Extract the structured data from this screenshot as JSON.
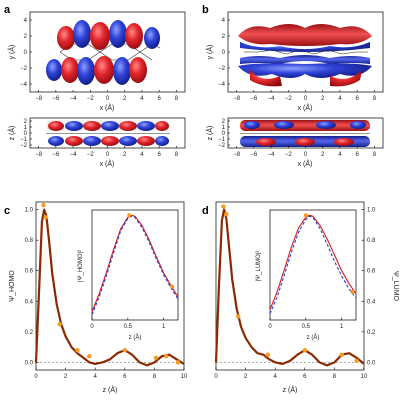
{
  "panels": {
    "a": {
      "label": "a",
      "top": {
        "xlabel": "x (Å)",
        "ylabel": "y (Å)",
        "xticks": [
          "−8",
          "−6",
          "−4",
          "−2",
          "0",
          "2",
          "4",
          "6",
          "8"
        ],
        "yticks": [
          "4",
          "2",
          "0",
          "−2",
          "−4"
        ]
      },
      "bottom": {
        "xlabel": "x (Å)",
        "ylabel": "z (Å)",
        "xticks": [
          "−8",
          "−6",
          "−4",
          "−2",
          "0",
          "2",
          "4",
          "6",
          "8"
        ],
        "yticks": [
          "2",
          "1",
          "0",
          "−1",
          "−2"
        ]
      }
    },
    "b": {
      "label": "b",
      "top": {
        "xlabel": "x (Å)",
        "ylabel": "y (Å)",
        "xticks": [
          "−8",
          "−6",
          "−4",
          "−2",
          "0",
          "2",
          "4",
          "6",
          "8"
        ],
        "yticks": [
          "4",
          "2",
          "0",
          "−2",
          "−4"
        ]
      },
      "bottom": {
        "xlabel": "x (Å)",
        "ylabel": "z (Å)",
        "xticks": [
          "−8",
          "−6",
          "−4",
          "−2",
          "0",
          "2",
          "4",
          "6",
          "8"
        ],
        "yticks": [
          "2",
          "1",
          "0",
          "−1",
          "−2"
        ]
      }
    },
    "c": {
      "label": "c",
      "ylabel": "Ψ_HOMO",
      "xlabel": "z (Å)",
      "inset_ylabel": "|Ψ_HOMO|²",
      "inset_xlabel": "z (Å)"
    },
    "d": {
      "label": "d",
      "ylabel": "Ψ_LUMO",
      "xlabel": "z (Å)",
      "inset_ylabel": "|Ψ_LUMO|²",
      "inset_xlabel": "z (Å)"
    }
  },
  "colors": {
    "red": "#d7191c",
    "blue": "#2b3fd1",
    "orange": "#f59a23",
    "dark": "#8a2a00"
  },
  "chart_data": [
    {
      "type": "line",
      "panel": "c",
      "xlim": [
        0,
        10
      ],
      "ylim": [
        -0.05,
        1.05
      ],
      "xticks": [
        0,
        2,
        4,
        6,
        8,
        10
      ],
      "yticks": [
        0,
        0.2,
        0.4,
        0.6,
        0.8,
        1.0
      ],
      "series": [
        {
          "x": [
            0,
            0.2,
            0.4,
            0.55,
            0.7,
            0.9,
            1.1,
            1.4,
            1.7,
            2.0,
            2.4,
            2.8,
            3.2,
            3.6,
            4.0,
            4.5,
            5.0,
            5.5,
            6.0,
            6.5,
            7.0,
            7.5,
            8.0,
            8.5,
            9.0,
            9.5,
            10.0
          ],
          "y": [
            0.0,
            0.45,
            0.92,
            1.0,
            0.96,
            0.78,
            0.58,
            0.38,
            0.25,
            0.17,
            0.1,
            0.06,
            0.03,
            0.0,
            -0.01,
            0.0,
            0.02,
            0.06,
            0.08,
            0.05,
            0.0,
            -0.02,
            0.0,
            0.04,
            0.05,
            0.02,
            -0.01
          ]
        }
      ],
      "points": {
        "x": [
          0.5,
          0.65,
          1.6,
          2.8,
          3.6,
          6.0,
          8.1,
          8.8,
          9.6
        ],
        "y": [
          1.03,
          0.95,
          0.25,
          0.08,
          0.04,
          0.08,
          0.03,
          0.04,
          0.0
        ]
      },
      "inset": {
        "xlim": [
          0,
          1.2
        ],
        "ylim": [
          0,
          1.05
        ],
        "xticks": [
          0,
          0.5,
          1
        ],
        "series": [
          {
            "x": [
              0,
              0.1,
              0.2,
              0.3,
              0.4,
              0.5,
              0.55,
              0.6,
              0.7,
              0.8,
              0.9,
              1.0,
              1.1,
              1.2
            ],
            "y": [
              0.08,
              0.25,
              0.45,
              0.67,
              0.87,
              0.98,
              1.0,
              0.99,
              0.9,
              0.76,
              0.6,
              0.45,
              0.33,
              0.22
            ]
          },
          {
            "x": [
              0,
              0.1,
              0.2,
              0.3,
              0.4,
              0.5,
              0.55,
              0.6,
              0.7,
              0.8,
              0.9,
              1.0,
              1.1,
              1.2
            ],
            "y": [
              0.05,
              0.22,
              0.42,
              0.64,
              0.85,
              0.97,
              0.99,
              0.98,
              0.88,
              0.74,
              0.58,
              0.43,
              0.31,
              0.2
            ]
          }
        ],
        "points": {
          "x": [
            0.52,
            1.12
          ],
          "y": [
            1.0,
            0.32
          ]
        }
      }
    },
    {
      "type": "line",
      "panel": "d",
      "xlim": [
        0,
        10
      ],
      "ylim": [
        -0.05,
        1.05
      ],
      "xticks": [
        0,
        2,
        4,
        6,
        8,
        10
      ],
      "yticks": [
        0,
        0.2,
        0.4,
        0.6,
        0.8,
        1.0
      ],
      "series": [
        {
          "x": [
            0,
            0.2,
            0.4,
            0.55,
            0.7,
            0.9,
            1.1,
            1.4,
            1.7,
            2.0,
            2.4,
            2.8,
            3.2,
            3.6,
            4.0,
            4.5,
            5.0,
            5.5,
            6.0,
            6.5,
            7.0,
            7.5,
            8.0,
            8.5,
            9.0,
            9.5,
            10.0
          ],
          "y": [
            0.0,
            0.5,
            0.93,
            1.0,
            0.94,
            0.74,
            0.54,
            0.35,
            0.23,
            0.16,
            0.1,
            0.06,
            0.05,
            0.02,
            0.0,
            -0.01,
            0.01,
            0.05,
            0.08,
            0.05,
            0.0,
            -0.02,
            0.0,
            0.05,
            0.06,
            0.03,
            -0.01
          ]
        }
      ],
      "points": {
        "x": [
          0.5,
          0.7,
          1.5,
          3.5,
          6.0,
          8.5,
          9.5
        ],
        "y": [
          1.02,
          0.97,
          0.3,
          0.05,
          0.08,
          0.05,
          0.01
        ]
      },
      "inset": {
        "xlim": [
          0,
          1.2
        ],
        "ylim": [
          0,
          1.05
        ],
        "xticks": [
          0,
          0.5,
          1
        ],
        "series": [
          {
            "x": [
              0,
              0.1,
              0.2,
              0.3,
              0.4,
              0.5,
              0.55,
              0.6,
              0.7,
              0.8,
              0.9,
              1.0,
              1.1,
              1.2
            ],
            "y": [
              0.1,
              0.27,
              0.48,
              0.7,
              0.88,
              0.98,
              1.0,
              0.99,
              0.9,
              0.77,
              0.62,
              0.47,
              0.35,
              0.25
            ]
          },
          {
            "x": [
              0,
              0.1,
              0.2,
              0.3,
              0.4,
              0.5,
              0.55,
              0.6,
              0.7,
              0.8,
              0.9,
              1.0,
              1.1,
              1.2
            ],
            "y": [
              0.06,
              0.22,
              0.43,
              0.65,
              0.84,
              0.96,
              0.99,
              0.98,
              0.87,
              0.72,
              0.56,
              0.42,
              0.3,
              0.21
            ]
          }
        ],
        "points": {
          "x": [
            0.5,
            1.15
          ],
          "y": [
            1.0,
            0.27
          ]
        }
      }
    }
  ]
}
